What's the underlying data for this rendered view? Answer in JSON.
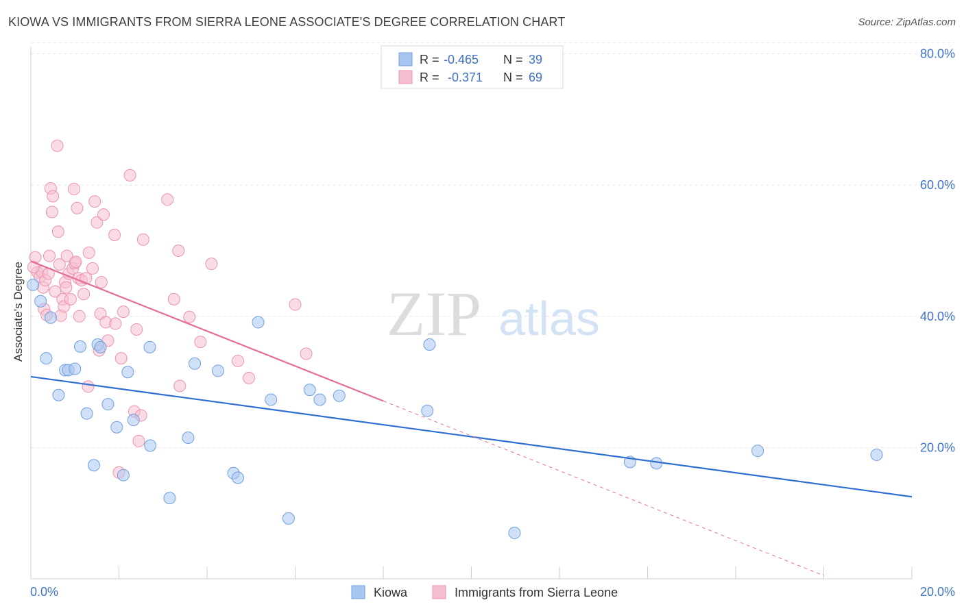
{
  "title": "KIOWA VS IMMIGRANTS FROM SIERRA LEONE ASSOCIATE'S DEGREE CORRELATION CHART",
  "source": "Source: ZipAtlas.com",
  "watermark": {
    "zip": "ZIP",
    "atlas": "atlas"
  },
  "colors": {
    "blue": "#2f6fd0",
    "blue_fill": "#a9c6f0",
    "blue_edge": "#6f9ee0",
    "pink": "#e46d97",
    "pink_fill": "#f6bfd0",
    "pink_edge": "#eb92b0",
    "tick_text": "#3d72c7",
    "grid": "#e6e6e6",
    "axis_label": "#333333"
  },
  "stats_box": {
    "rows": [
      {
        "r_label": "R =",
        "r_value": "-0.465",
        "n_label": "N =",
        "n_value": "39"
      },
      {
        "r_label": "R =",
        "r_value": "-0.371",
        "n_label": "N =",
        "n_value": "69"
      }
    ]
  },
  "chart_data": {
    "type": "scatter",
    "title": "KIOWA VS IMMIGRANTS FROM SIERRA LEONE ASSOCIATE'S DEGREE CORRELATION CHART",
    "xlabel": "",
    "ylabel": "Associate's Degree",
    "xlim": [
      0,
      20
    ],
    "ylim": [
      0,
      82
    ],
    "x_tick_labels": [
      "0.0%",
      "20.0%"
    ],
    "y_ticks": [
      20,
      40,
      60,
      80
    ],
    "y_tick_labels": [
      "20.0%",
      "40.0%",
      "60.0%",
      "80.0%"
    ],
    "grid": "horizontal dashed",
    "legend_position": "bottom-center",
    "series": [
      {
        "name": "Kiowa",
        "points": [
          [
            0.05,
            44.8
          ],
          [
            0.22,
            42.3
          ],
          [
            0.35,
            33.6
          ],
          [
            0.45,
            39.8
          ],
          [
            0.63,
            28.0
          ],
          [
            0.78,
            31.8
          ],
          [
            0.85,
            31.8
          ],
          [
            1.0,
            32.0
          ],
          [
            1.12,
            35.4
          ],
          [
            1.27,
            25.2
          ],
          [
            1.43,
            17.3
          ],
          [
            1.52,
            35.7
          ],
          [
            1.58,
            35.3
          ],
          [
            1.75,
            26.6
          ],
          [
            1.95,
            23.1
          ],
          [
            2.1,
            15.8
          ],
          [
            2.2,
            31.5
          ],
          [
            2.33,
            24.2
          ],
          [
            2.71,
            20.3
          ],
          [
            2.7,
            35.3
          ],
          [
            3.15,
            12.3
          ],
          [
            3.57,
            21.5
          ],
          [
            3.72,
            32.8
          ],
          [
            4.25,
            31.7
          ],
          [
            4.6,
            16.1
          ],
          [
            4.7,
            15.4
          ],
          [
            5.16,
            39.1
          ],
          [
            5.45,
            27.3
          ],
          [
            5.85,
            9.2
          ],
          [
            6.33,
            28.8
          ],
          [
            6.56,
            27.3
          ],
          [
            7.0,
            27.9
          ],
          [
            9.0,
            25.6
          ],
          [
            9.05,
            35.7
          ],
          [
            10.98,
            7.0
          ],
          [
            13.6,
            17.8
          ],
          [
            14.2,
            17.6
          ],
          [
            16.5,
            19.5
          ],
          [
            19.2,
            18.9
          ]
        ],
        "trend": {
          "x": [
            0,
            20
          ],
          "y": [
            30.8,
            12.5
          ]
        }
      },
      {
        "name": "Immigrants from Sierra Leone",
        "points": [
          [
            0.1,
            49.0
          ],
          [
            0.15,
            46.7
          ],
          [
            0.2,
            46.0
          ],
          [
            0.25,
            46.8
          ],
          [
            0.28,
            44.4
          ],
          [
            0.3,
            41.1
          ],
          [
            0.33,
            45.5
          ],
          [
            0.36,
            40.2
          ],
          [
            0.4,
            46.5
          ],
          [
            0.42,
            49.2
          ],
          [
            0.45,
            59.5
          ],
          [
            0.48,
            55.9
          ],
          [
            0.5,
            58.3
          ],
          [
            0.55,
            43.8
          ],
          [
            0.6,
            66.0
          ],
          [
            0.62,
            52.9
          ],
          [
            0.65,
            47.9
          ],
          [
            0.68,
            40.1
          ],
          [
            0.72,
            42.6
          ],
          [
            0.75,
            41.5
          ],
          [
            0.78,
            45.2
          ],
          [
            0.8,
            44.4
          ],
          [
            0.82,
            49.2
          ],
          [
            0.86,
            46.5
          ],
          [
            0.9,
            42.6
          ],
          [
            0.95,
            47.3
          ],
          [
            0.98,
            59.4
          ],
          [
            1.0,
            48.1
          ],
          [
            1.02,
            48.3
          ],
          [
            1.05,
            56.5
          ],
          [
            1.08,
            45.8
          ],
          [
            1.1,
            40.0
          ],
          [
            1.15,
            45.5
          ],
          [
            1.2,
            43.4
          ],
          [
            1.25,
            45.8
          ],
          [
            1.3,
            29.3
          ],
          [
            1.32,
            49.7
          ],
          [
            1.4,
            47.3
          ],
          [
            1.45,
            57.5
          ],
          [
            1.5,
            54.3
          ],
          [
            1.55,
            34.8
          ],
          [
            1.58,
            40.4
          ],
          [
            1.6,
            45.2
          ],
          [
            1.65,
            55.5
          ],
          [
            1.7,
            39.1
          ],
          [
            1.75,
            36.3
          ],
          [
            1.9,
            52.4
          ],
          [
            1.92,
            38.9
          ],
          [
            2.0,
            16.2
          ],
          [
            2.05,
            33.6
          ],
          [
            2.1,
            40.7
          ],
          [
            2.25,
            61.5
          ],
          [
            2.35,
            25.5
          ],
          [
            2.4,
            38.0
          ],
          [
            2.45,
            21.0
          ],
          [
            2.5,
            24.9
          ],
          [
            2.55,
            51.7
          ],
          [
            3.1,
            57.8
          ],
          [
            3.25,
            42.6
          ],
          [
            3.35,
            50.0
          ],
          [
            3.38,
            29.4
          ],
          [
            3.6,
            39.9
          ],
          [
            3.85,
            36.1
          ],
          [
            4.1,
            48.0
          ],
          [
            4.7,
            33.2
          ],
          [
            4.95,
            30.6
          ],
          [
            6.0,
            41.8
          ],
          [
            6.25,
            34.3
          ],
          [
            0.06,
            47.5
          ]
        ],
        "trend": {
          "x": [
            0,
            8
          ],
          "y": [
            48.4,
            27.1
          ]
        },
        "trend_extension": {
          "x": [
            8,
            18.0
          ],
          "y": [
            27.1,
            0.5
          ]
        }
      }
    ]
  }
}
